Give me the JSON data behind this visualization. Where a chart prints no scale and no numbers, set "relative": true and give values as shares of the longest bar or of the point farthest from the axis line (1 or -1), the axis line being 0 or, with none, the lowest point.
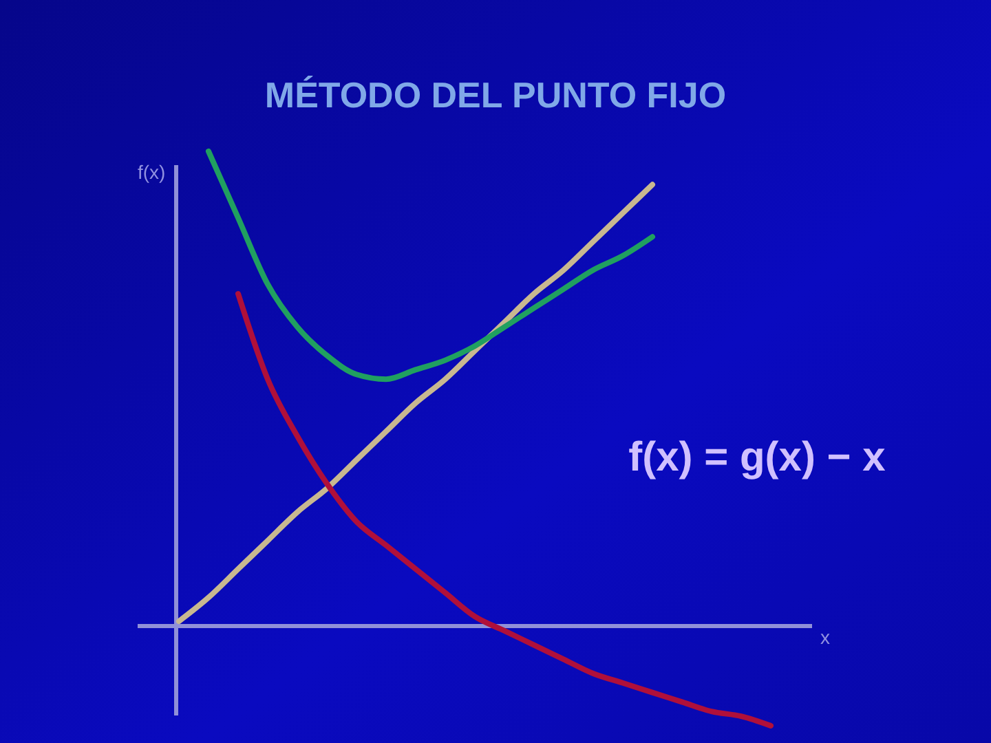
{
  "chart_data": {
    "type": "line",
    "title": "MÉTODO DEL PUNTO FIJO",
    "xlabel": "x",
    "ylabel": "f(x)",
    "relative": true,
    "ref_lines": [
      {
        "axis": "y",
        "value": 0,
        "color": "#9090d8"
      }
    ],
    "categories": [
      null,
      null,
      null,
      null,
      null,
      null,
      null,
      null,
      null,
      null,
      null,
      null,
      null,
      null,
      null,
      null,
      null,
      null,
      null,
      null,
      null
    ],
    "series": [
      {
        "color": "#c8b890",
        "values": [
          0.01,
          0.06,
          0.12,
          0.18,
          0.24,
          0.29,
          0.35,
          0.41,
          0.47,
          0.52,
          0.58,
          0.64,
          0.7,
          0.75,
          0.81,
          0.87,
          0.93,
          null,
          null,
          null,
          null
        ]
      },
      {
        "color": "#20a060",
        "values": [
          null,
          1.0,
          0.86,
          0.72,
          0.63,
          0.57,
          0.53,
          0.52,
          0.54,
          0.56,
          0.59,
          0.63,
          0.67,
          0.71,
          0.75,
          0.78,
          0.82,
          null,
          null,
          null,
          null
        ]
      },
      {
        "color": "#b0103a",
        "values": [
          null,
          null,
          0.7,
          0.52,
          0.4,
          0.3,
          0.22,
          0.17,
          0.12,
          0.07,
          0.02,
          -0.01,
          -0.04,
          -0.07,
          -0.1,
          -0.12,
          -0.14,
          -0.16,
          -0.18,
          -0.19,
          -0.21
        ]
      }
    ],
    "annotations": [
      "f(x) = g(x) − x"
    ]
  }
}
